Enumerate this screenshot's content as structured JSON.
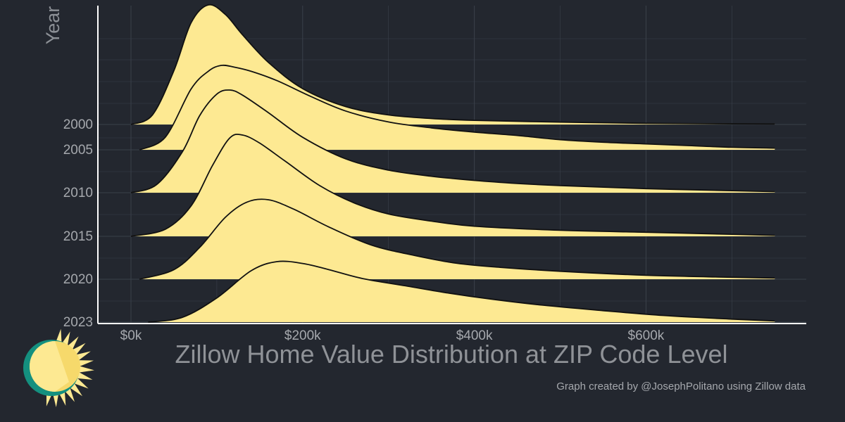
{
  "chart_data": {
    "type": "area",
    "subtype": "ridgeline",
    "title": "",
    "xlabel": "Zillow Home Value Distribution at ZIP Code Level",
    "ylabel": "Year",
    "xlim": [
      -15000,
      790000
    ],
    "x_ticks": [
      0,
      200000,
      400000,
      600000
    ],
    "x_tick_labels": [
      "$0k",
      "$200k",
      "$400k",
      "$600k"
    ],
    "grid": true,
    "legend": "none",
    "series": [
      {
        "name": "2000",
        "x": [
          0,
          25000,
          50000,
          70000,
          90000,
          110000,
          130000,
          160000,
          200000,
          250000,
          300000,
          350000,
          400000,
          500000,
          600000,
          750000
        ],
        "density": [
          0,
          0.08,
          0.45,
          0.85,
          1.0,
          0.92,
          0.75,
          0.52,
          0.3,
          0.15,
          0.08,
          0.05,
          0.035,
          0.02,
          0.01,
          0.004
        ]
      },
      {
        "name": "2005",
        "x": [
          10000,
          40000,
          70000,
          90000,
          105000,
          120000,
          140000,
          170000,
          210000,
          250000,
          300000,
          350000,
          400000,
          450000,
          500000,
          550000,
          600000,
          650000,
          700000,
          750000
        ],
        "density": [
          0,
          0.15,
          0.72,
          0.93,
          1.0,
          0.98,
          0.93,
          0.82,
          0.63,
          0.46,
          0.33,
          0.26,
          0.21,
          0.17,
          0.12,
          0.09,
          0.07,
          0.05,
          0.03,
          0.02
        ]
      },
      {
        "name": "2010",
        "x": [
          0,
          30000,
          60000,
          80000,
          100000,
          115000,
          130000,
          160000,
          200000,
          250000,
          300000,
          350000,
          400000,
          450000,
          500000,
          600000,
          700000,
          750000
        ],
        "density": [
          0,
          0.08,
          0.4,
          0.75,
          0.96,
          1.0,
          0.95,
          0.78,
          0.54,
          0.33,
          0.22,
          0.16,
          0.12,
          0.09,
          0.07,
          0.04,
          0.02,
          0.01
        ]
      },
      {
        "name": "2015",
        "x": [
          0,
          40000,
          70000,
          95000,
          115000,
          130000,
          150000,
          180000,
          220000,
          260000,
          300000,
          350000,
          400000,
          500000,
          600000,
          700000,
          750000
        ],
        "density": [
          0,
          0.07,
          0.3,
          0.7,
          0.97,
          1.0,
          0.92,
          0.74,
          0.5,
          0.33,
          0.22,
          0.15,
          0.1,
          0.06,
          0.04,
          0.02,
          0.01
        ]
      },
      {
        "name": "2020",
        "x": [
          10000,
          50000,
          80000,
          110000,
          135000,
          160000,
          190000,
          230000,
          280000,
          330000,
          380000,
          430000,
          500000,
          600000,
          700000,
          750000
        ],
        "density": [
          0,
          0.12,
          0.4,
          0.78,
          0.97,
          1.0,
          0.88,
          0.66,
          0.43,
          0.3,
          0.2,
          0.15,
          0.1,
          0.05,
          0.025,
          0.015
        ]
      },
      {
        "name": "2023",
        "x": [
          20000,
          60000,
          100000,
          140000,
          170000,
          200000,
          230000,
          270000,
          320000,
          370000,
          420000,
          480000,
          550000,
          620000,
          700000,
          750000
        ],
        "density": [
          0,
          0.08,
          0.4,
          0.85,
          1.0,
          0.97,
          0.87,
          0.72,
          0.6,
          0.48,
          0.38,
          0.28,
          0.19,
          0.11,
          0.05,
          0.02
        ]
      }
    ],
    "colors": {
      "fill": "#fde992",
      "outline": "#111111",
      "background": "#23272f",
      "grid": "#3a404a",
      "axis": "#ffffff"
    }
  },
  "logo": {
    "icon": "sun-icon",
    "colors": [
      "#14907f",
      "#f6d96b",
      "#fde992"
    ]
  },
  "credit": "Graph created by @JosephPolitano using Zillow data"
}
